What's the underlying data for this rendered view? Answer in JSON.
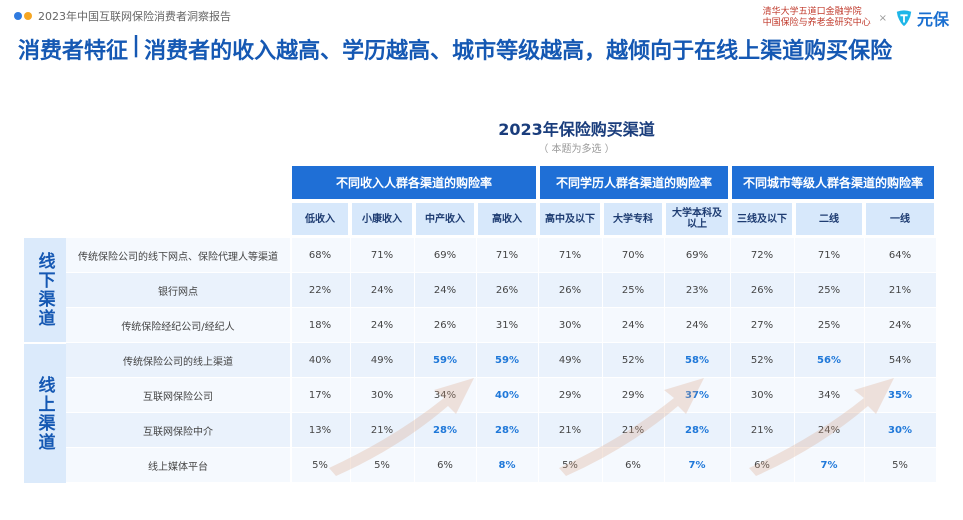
{
  "header": {
    "report_title": "2023年中国互联网保险消费者洞察报告",
    "org_line1": "清华大学五道口金融学院",
    "org_line2": "中国保险与养老金研究中心",
    "brand_separator": "×",
    "brand_name": "元保",
    "dot_colors": [
      "#2f7be0",
      "#f5a623"
    ]
  },
  "headline": {
    "section": "消费者特征",
    "separator": "|",
    "statement": "消费者的收入越高、学历越高、城市等级越高，越倾向于在线上渠道购买保险"
  },
  "table": {
    "title": "2023年保险购买渠道",
    "subtitle": "（ 本题为多选 ）",
    "groups": [
      "不同收入人群各渠道的购险率",
      "不同学历人群各渠道的购险率",
      "不同城市等级人群各渠道的购险率"
    ],
    "columns": [
      "低收入",
      "小康收入",
      "中产收入",
      "高收入",
      "高中及以下",
      "大学专科",
      "大学本科及以上",
      "三线及以下",
      "二线",
      "一线"
    ],
    "categories": [
      "线下渠道",
      "线上渠道"
    ],
    "rows": [
      {
        "label": "传统保险公司的线下网点、保险代理人等渠道",
        "values": [
          "68%",
          "71%",
          "69%",
          "71%",
          "71%",
          "70%",
          "69%",
          "72%",
          "71%",
          "64%"
        ],
        "highlight": [
          false,
          false,
          false,
          false,
          false,
          false,
          false,
          false,
          false,
          false
        ]
      },
      {
        "label": "银行网点",
        "values": [
          "22%",
          "24%",
          "24%",
          "26%",
          "26%",
          "25%",
          "23%",
          "26%",
          "25%",
          "21%"
        ],
        "highlight": [
          false,
          false,
          false,
          false,
          false,
          false,
          false,
          false,
          false,
          false
        ]
      },
      {
        "label": "传统保险经纪公司/经纪人",
        "values": [
          "18%",
          "24%",
          "26%",
          "31%",
          "30%",
          "24%",
          "24%",
          "27%",
          "25%",
          "24%"
        ],
        "highlight": [
          false,
          false,
          false,
          false,
          false,
          false,
          false,
          false,
          false,
          false
        ]
      },
      {
        "label": "传统保险公司的线上渠道",
        "values": [
          "40%",
          "49%",
          "59%",
          "59%",
          "49%",
          "52%",
          "58%",
          "52%",
          "56%",
          "54%"
        ],
        "highlight": [
          false,
          false,
          true,
          true,
          false,
          false,
          true,
          false,
          true,
          false
        ]
      },
      {
        "label": "互联网保险公司",
        "values": [
          "17%",
          "30%",
          "34%",
          "40%",
          "29%",
          "29%",
          "37%",
          "30%",
          "34%",
          "35%"
        ],
        "highlight": [
          false,
          false,
          false,
          true,
          false,
          false,
          true,
          false,
          false,
          true
        ]
      },
      {
        "label": "互联网保险中介",
        "values": [
          "13%",
          "21%",
          "28%",
          "28%",
          "21%",
          "21%",
          "28%",
          "21%",
          "24%",
          "30%"
        ],
        "highlight": [
          false,
          false,
          true,
          true,
          false,
          false,
          true,
          false,
          false,
          true
        ]
      },
      {
        "label": "线上媒体平台",
        "values": [
          "5%",
          "5%",
          "6%",
          "8%",
          "5%",
          "6%",
          "7%",
          "6%",
          "7%",
          "5%"
        ],
        "highlight": [
          false,
          false,
          false,
          true,
          false,
          false,
          true,
          false,
          true,
          false
        ]
      }
    ],
    "colors": {
      "group_header": "#1f6fd6",
      "sub_header": "#d7e8fb",
      "highlight": "#1f78d9"
    }
  }
}
